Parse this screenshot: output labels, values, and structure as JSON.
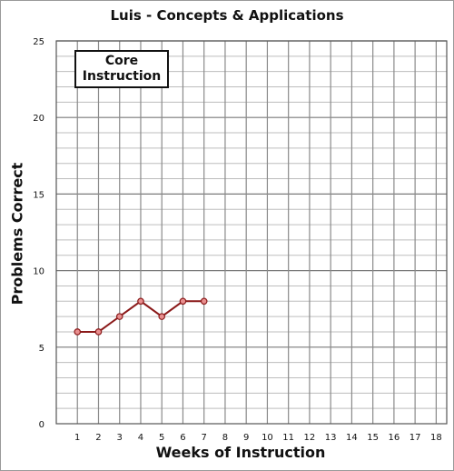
{
  "chart_data": {
    "type": "line",
    "title": "Luis - Concepts & Applications",
    "xlabel": "Weeks of Instruction",
    "ylabel": "Problems Correct",
    "x_ticks": [
      1,
      2,
      3,
      4,
      5,
      6,
      7,
      8,
      9,
      10,
      11,
      12,
      13,
      14,
      15,
      16,
      17,
      18
    ],
    "y_ticks": [
      0,
      5,
      10,
      15,
      20,
      25
    ],
    "xlim": [
      0,
      18.5
    ],
    "ylim": [
      0,
      25
    ],
    "grid": true,
    "phase_label": "Core\nInstruction",
    "series": [
      {
        "x": [
          1,
          2,
          3,
          4,
          5,
          6,
          7
        ],
        "values": [
          6,
          6,
          7,
          8,
          7,
          8,
          8
        ],
        "color": "#8b1a1a",
        "marker_fill": "#e88f8f"
      }
    ]
  }
}
